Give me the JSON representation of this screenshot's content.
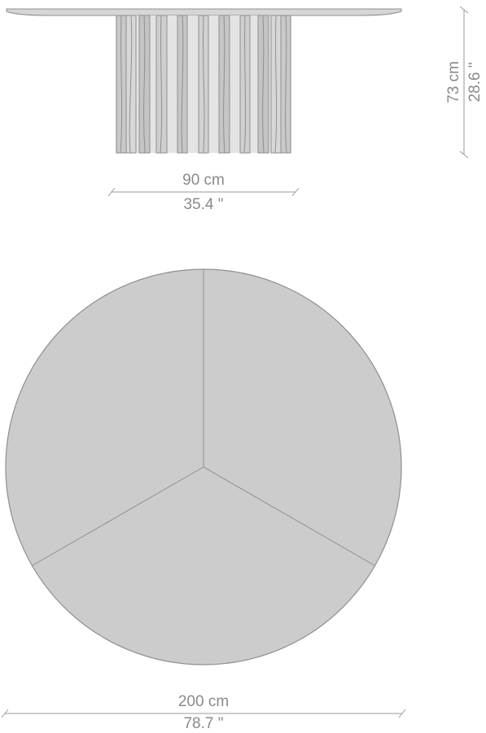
{
  "colors": {
    "top_fill": "#cccccc",
    "top_stroke": "#8f8f8f",
    "line_stroke": "#9a9a9a",
    "label_color": "#8a8a8a"
  },
  "dimensions": {
    "base_width": {
      "metric": "90 cm",
      "imperial": "35.4 \""
    },
    "height": {
      "metric": "73 cm",
      "imperial": "28.6 \""
    },
    "top_diameter": {
      "metric": "200 cm",
      "imperial": "78.7 \""
    }
  }
}
